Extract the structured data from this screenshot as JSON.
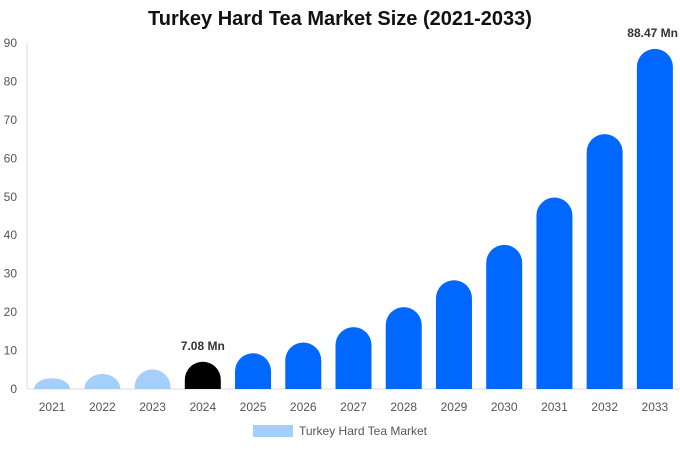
{
  "chart_data": {
    "type": "bar",
    "title": "Turkey Hard Tea Market Size (2021-2033)",
    "xlabel": "",
    "ylabel": "",
    "categories": [
      "2021",
      "2022",
      "2023",
      "2024",
      "2025",
      "2026",
      "2027",
      "2028",
      "2029",
      "2030",
      "2031",
      "2032",
      "2033"
    ],
    "values": [
      2.8,
      3.9,
      5.1,
      7.08,
      9.3,
      12.1,
      16.1,
      21.3,
      28.3,
      37.5,
      49.8,
      66.3,
      88.47
    ],
    "series": [
      {
        "name": "Turkey Hard Tea Market",
        "values": [
          2.8,
          3.9,
          5.1,
          7.08,
          9.3,
          12.1,
          16.1,
          21.3,
          28.3,
          37.5,
          49.8,
          66.3,
          88.47
        ]
      }
    ],
    "ylim": [
      0,
      90
    ],
    "yticks": [
      0,
      10,
      20,
      30,
      40,
      50,
      60,
      70,
      80,
      90
    ],
    "data_labels": [
      {
        "category": "2024",
        "text": "7.08 Mn"
      },
      {
        "category": "2033",
        "text": "88.47 Mn"
      }
    ],
    "colors": {
      "historical": "#a6cefa",
      "base_year": "#000000",
      "forecast": "#0068ff"
    },
    "historical_categories": [
      "2021",
      "2022",
      "2023"
    ],
    "base_year_category": "2024",
    "grid": false,
    "legend": {
      "placement": "bottom-center",
      "label": "Turkey Hard Tea Market",
      "color": "#a6cefa"
    }
  }
}
